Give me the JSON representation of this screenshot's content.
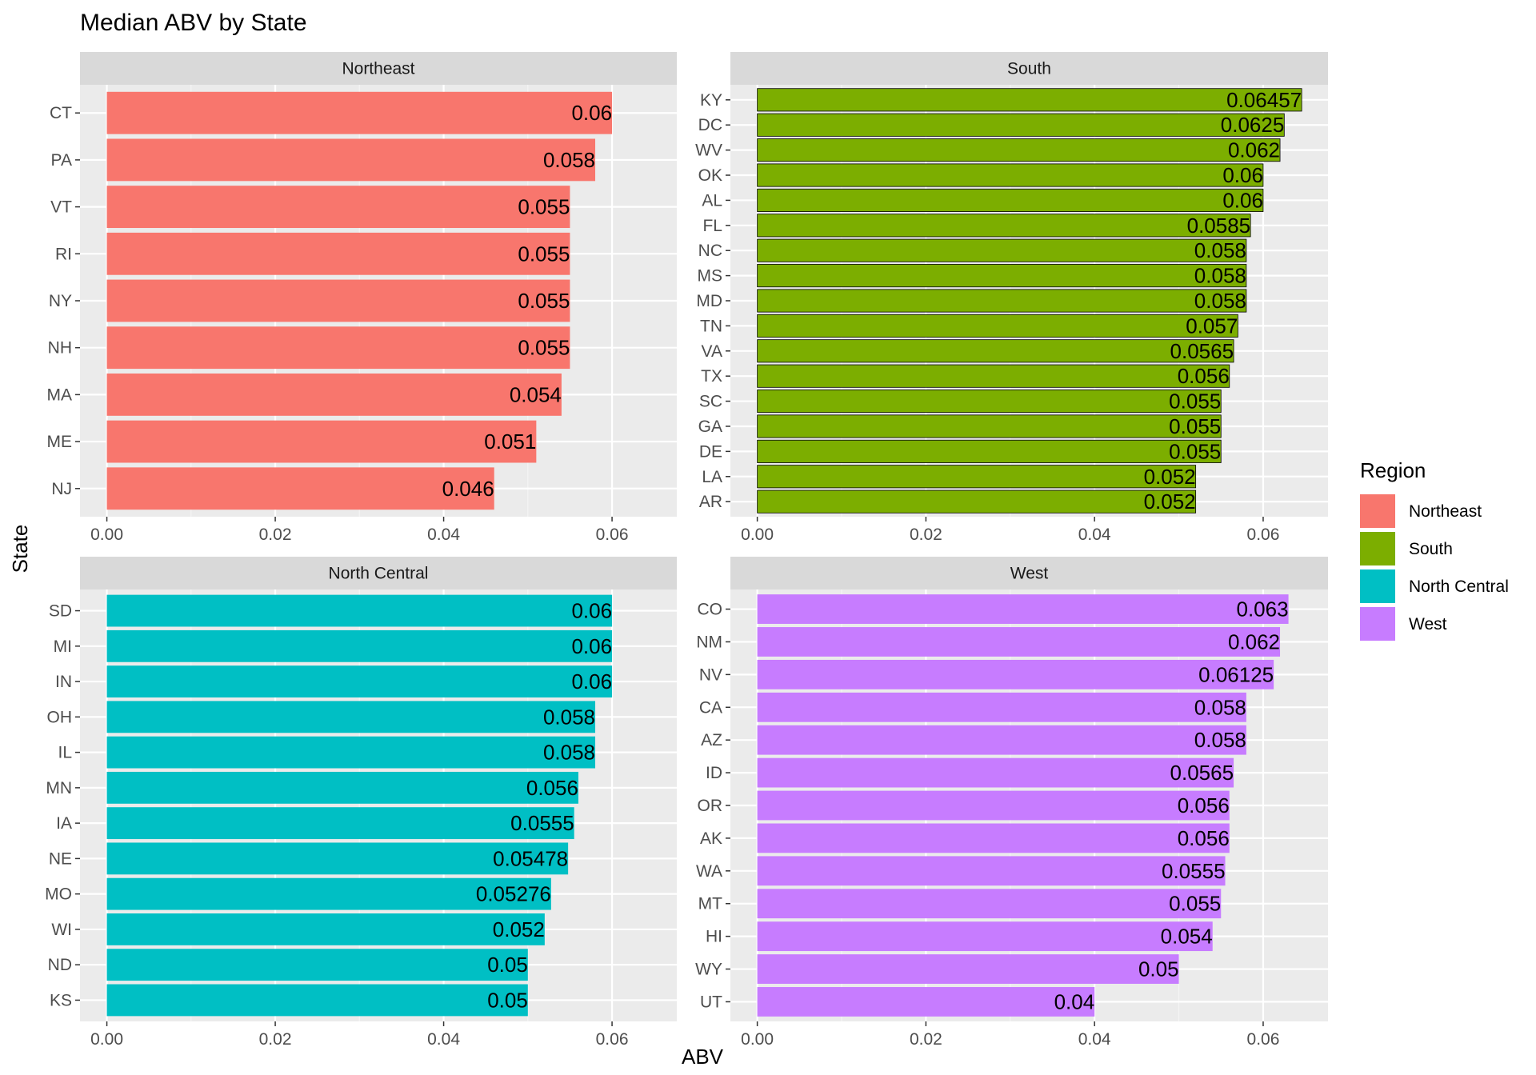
{
  "chart_data": {
    "type": "bar",
    "orientation": "horizontal",
    "title": "Median ABV by State",
    "xlabel": "ABV",
    "ylabel": "State",
    "xlim": [
      0,
      0.0645
    ],
    "x_ticks": [
      "0.00",
      "0.02",
      "0.04",
      "0.06"
    ],
    "x_tick_values": [
      0,
      0.02,
      0.04,
      0.06
    ],
    "grid": true,
    "legend": {
      "title": "Region",
      "position": "right",
      "items": [
        {
          "label": "Northeast",
          "color": "#F8766D"
        },
        {
          "label": "South",
          "color": "#7CAE00"
        },
        {
          "label": "North Central",
          "color": "#00BFC4"
        },
        {
          "label": "West",
          "color": "#C77CFF"
        }
      ]
    },
    "panels": [
      {
        "region": "Northeast",
        "color": "#F8766D",
        "categories": [
          "CT",
          "PA",
          "VT",
          "RI",
          "NY",
          "NH",
          "MA",
          "ME",
          "NJ"
        ],
        "values": [
          0.06,
          0.058,
          0.055,
          0.055,
          0.055,
          0.055,
          0.054,
          0.051,
          0.046
        ],
        "value_labels": [
          "0.06",
          "0.058",
          "0.055",
          "0.055",
          "0.055",
          "0.055",
          "0.054",
          "0.051",
          "0.046"
        ]
      },
      {
        "region": "South",
        "color": "#7CAE00",
        "categories": [
          "KY",
          "DC",
          "WV",
          "OK",
          "AL",
          "FL",
          "NC",
          "MS",
          "MD",
          "TN",
          "VA",
          "TX",
          "SC",
          "GA",
          "DE",
          "LA",
          "AR"
        ],
        "values": [
          0.06457,
          0.0625,
          0.062,
          0.06,
          0.06,
          0.0585,
          0.058,
          0.058,
          0.058,
          0.057,
          0.0565,
          0.056,
          0.055,
          0.055,
          0.055,
          0.052,
          0.052
        ],
        "value_labels": [
          "0.06457",
          "0.0625",
          "0.062",
          "0.06",
          "0.06",
          "0.0585",
          "0.058",
          "0.058",
          "0.058",
          "0.057",
          "0.0565",
          "0.056",
          "0.055",
          "0.055",
          "0.055",
          "0.052",
          "0.052"
        ]
      },
      {
        "region": "North Central",
        "color": "#00BFC4",
        "categories": [
          "SD",
          "MI",
          "IN",
          "OH",
          "IL",
          "MN",
          "IA",
          "NE",
          "MO",
          "WI",
          "ND",
          "KS"
        ],
        "values": [
          0.06,
          0.06,
          0.06,
          0.058,
          0.058,
          0.056,
          0.0555,
          0.05478,
          0.05276,
          0.052,
          0.05,
          0.05
        ],
        "value_labels": [
          "0.06",
          "0.06",
          "0.06",
          "0.058",
          "0.058",
          "0.056",
          "0.0555",
          "0.05478",
          "0.05276",
          "0.052",
          "0.05",
          "0.05"
        ]
      },
      {
        "region": "West",
        "color": "#C77CFF",
        "categories": [
          "CO",
          "NM",
          "NV",
          "CA",
          "AZ",
          "ID",
          "OR",
          "AK",
          "WA",
          "MT",
          "HI",
          "WY",
          "UT"
        ],
        "values": [
          0.063,
          0.062,
          0.06125,
          0.058,
          0.058,
          0.0565,
          0.056,
          0.056,
          0.0555,
          0.055,
          0.054,
          0.05,
          0.04
        ],
        "value_labels": [
          "0.063",
          "0.062",
          "0.06125",
          "0.058",
          "0.058",
          "0.0565",
          "0.056",
          "0.056",
          "0.0555",
          "0.055",
          "0.054",
          "0.05",
          "0.04"
        ]
      }
    ]
  }
}
